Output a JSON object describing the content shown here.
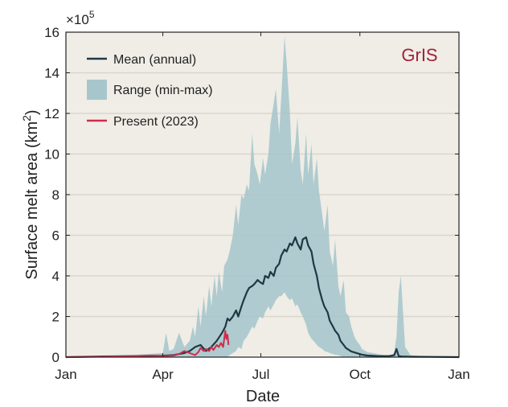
{
  "chart_data": {
    "type": "area",
    "region_label": "GrIS",
    "xlabel": "Date",
    "ylabel_main": "Surface melt area (km",
    "ylabel_sup": "2",
    "ylabel_close": ")",
    "y_multiplier_base": "×10",
    "y_multiplier_exp": "5",
    "x_ticks": [
      {
        "label": "Jan",
        "day": 0
      },
      {
        "label": "Apr",
        "day": 90
      },
      {
        "label": "Jul",
        "day": 181
      },
      {
        "label": "Oct",
        "day": 273
      },
      {
        "label": "Jan",
        "day": 365
      }
    ],
    "ylim": [
      0,
      16
    ],
    "y_ticks": [
      0,
      2,
      4,
      6,
      8,
      10,
      12,
      14,
      16
    ],
    "grid": "horizontal",
    "legend_placement": "top-left",
    "colors": {
      "background": "#efede6",
      "mean": "#1f3844",
      "range": "#a7c6cc",
      "present": "#cc2e4c",
      "region_label": "#a3213a",
      "grid": "#d9d6cd"
    },
    "series": [
      {
        "name": "Mean (annual)",
        "x": [
          0,
          30,
          60,
          90,
          100,
          105,
          110,
          115,
          120,
          125,
          130,
          135,
          140,
          145,
          148,
          150,
          152,
          155,
          158,
          160,
          163,
          165,
          168,
          170,
          173,
          175,
          178,
          180,
          183,
          185,
          188,
          190,
          193,
          195,
          198,
          200,
          203,
          205,
          208,
          210,
          213,
          215,
          218,
          220,
          223,
          225,
          228,
          230,
          233,
          235,
          238,
          240,
          243,
          245,
          248,
          250,
          253,
          255,
          258,
          260,
          263,
          265,
          270,
          275,
          280,
          290,
          300,
          305,
          307,
          309,
          312,
          320,
          340,
          365
        ],
        "y": [
          0,
          0.03,
          0.05,
          0.07,
          0.1,
          0.15,
          0.2,
          0.3,
          0.5,
          0.6,
          0.3,
          0.5,
          0.8,
          1.2,
          1.5,
          1.9,
          1.8,
          2.0,
          2.3,
          2.0,
          2.5,
          2.8,
          3.2,
          3.4,
          3.5,
          3.6,
          3.8,
          3.7,
          3.6,
          4.0,
          3.9,
          4.2,
          4.0,
          4.4,
          4.6,
          5.0,
          5.3,
          5.2,
          5.6,
          5.5,
          5.9,
          5.6,
          5.3,
          5.8,
          5.9,
          5.5,
          5.2,
          4.6,
          4.0,
          3.4,
          2.8,
          2.5,
          2.2,
          1.8,
          1.5,
          1.3,
          1.1,
          0.8,
          0.6,
          0.45,
          0.35,
          0.28,
          0.2,
          0.12,
          0.08,
          0.05,
          0.05,
          0.1,
          0.4,
          0.05,
          0.03,
          0.02,
          0.01,
          0
        ]
      },
      {
        "name": "Range (min-max)",
        "x": [
          0,
          60,
          90,
          93,
          96,
          100,
          105,
          110,
          115,
          118,
          120,
          123,
          125,
          128,
          130,
          133,
          135,
          138,
          140,
          142,
          145,
          147,
          150,
          152,
          155,
          158,
          160,
          163,
          165,
          168,
          170,
          173,
          175,
          178,
          180,
          183,
          185,
          188,
          190,
          193,
          195,
          198,
          200,
          203,
          205,
          208,
          210,
          213,
          215,
          218,
          220,
          223,
          225,
          228,
          230,
          233,
          235,
          238,
          240,
          243,
          245,
          248,
          250,
          253,
          255,
          258,
          260,
          263,
          265,
          268,
          270,
          273,
          275,
          280,
          285,
          290,
          295,
          300,
          303,
          305,
          307,
          309,
          311,
          315,
          320,
          330,
          340,
          365
        ],
        "ymin": [
          0,
          0,
          0,
          0,
          0,
          0,
          0,
          0,
          0,
          0,
          0,
          0,
          0,
          0,
          0,
          0,
          0,
          0,
          0,
          0,
          0,
          0,
          0,
          0.1,
          0.2,
          0.3,
          0.5,
          0.4,
          0.8,
          1.0,
          1.2,
          1.5,
          1.4,
          1.8,
          2.0,
          1.9,
          2.2,
          2.5,
          2.3,
          2.6,
          2.8,
          3.0,
          3.0,
          3.2,
          3.0,
          2.8,
          2.9,
          2.5,
          2.6,
          2.2,
          2.0,
          1.6,
          1.2,
          0.9,
          0.8,
          0.6,
          0.5,
          0.4,
          0.3,
          0.25,
          0.2,
          0.15,
          0.12,
          0.1,
          0.05,
          0,
          0,
          0,
          0,
          0,
          0,
          0,
          0,
          0,
          0,
          0,
          0,
          0,
          0,
          0,
          0,
          0,
          0,
          0,
          0,
          0,
          0,
          0
        ],
        "ymax": [
          0,
          0.1,
          0.2,
          1.2,
          0.3,
          0.4,
          1.2,
          0.5,
          0.8,
          1.5,
          1.0,
          2.5,
          1.5,
          3.0,
          2.0,
          3.5,
          2.5,
          4.0,
          3.0,
          4.2,
          3.2,
          4.5,
          4.8,
          5.2,
          6.0,
          7.5,
          6.5,
          8.0,
          7.8,
          8.5,
          8.2,
          11.0,
          9.5,
          9.0,
          8.5,
          9.8,
          9.0,
          10.0,
          11.5,
          12.5,
          13.2,
          11.0,
          12.8,
          15.8,
          14.5,
          12.0,
          9.5,
          10.5,
          11.8,
          9.2,
          8.5,
          11.0,
          9.0,
          10.5,
          8.5,
          9.8,
          8.2,
          7.0,
          6.2,
          7.5,
          5.2,
          4.5,
          5.8,
          3.5,
          3.0,
          3.8,
          2.2,
          2.0,
          1.5,
          1.0,
          0.8,
          0.6,
          0.4,
          0.25,
          0.2,
          0.15,
          0.1,
          0.08,
          0.05,
          0.3,
          1.0,
          3.2,
          4.0,
          0.5,
          0.1,
          0.05,
          0.02,
          0
        ]
      },
      {
        "name": "Present (2023)",
        "x": [
          0,
          30,
          60,
          80,
          90,
          100,
          105,
          110,
          115,
          120,
          123,
          125,
          128,
          130,
          133,
          135,
          137,
          140,
          142,
          144,
          146,
          148,
          149,
          150,
          151
        ],
        "y": [
          0,
          0.02,
          0.05,
          0.08,
          0.05,
          0.08,
          0.15,
          0.3,
          0.2,
          0.1,
          0.25,
          0.45,
          0.3,
          0.4,
          0.3,
          0.5,
          0.35,
          0.6,
          0.5,
          0.7,
          0.5,
          1.3,
          0.9,
          1.1,
          0.6
        ]
      }
    ]
  }
}
